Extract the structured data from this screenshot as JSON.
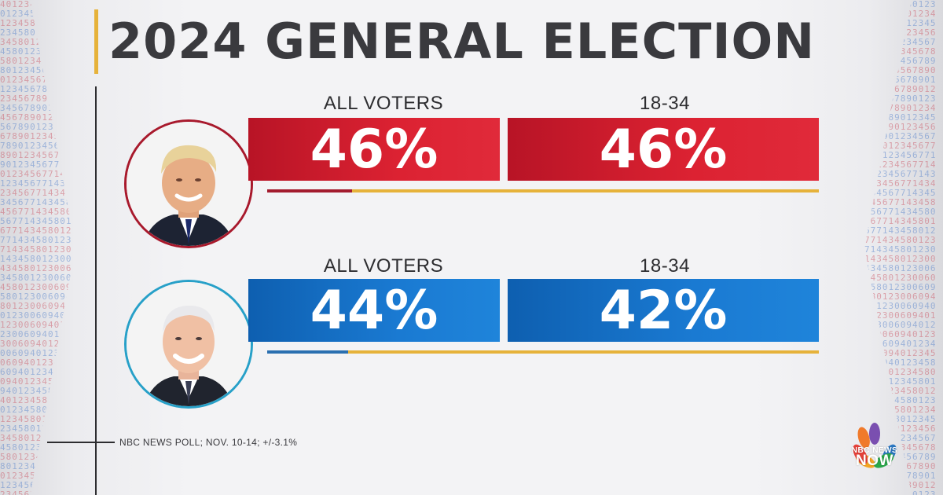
{
  "title": "2024 GENERAL ELECTION",
  "source_note": "NBC NEWS POLL; NOV. 10-14; +/-3.1%",
  "candidates": [
    {
      "party_color": "#d81f2f",
      "ring_color": "#a8192c",
      "columns": [
        {
          "label": "ALL VOTERS",
          "value": "46%",
          "percent": 46
        },
        {
          "label": "18-34",
          "value": "46%",
          "percent": 46
        }
      ]
    },
    {
      "party_color": "#1a7ad2",
      "ring_color": "#27a0c8",
      "columns": [
        {
          "label": "ALL VOTERS",
          "value": "44%",
          "percent": 44
        },
        {
          "label": "18-34",
          "value": "42%",
          "percent": 42
        }
      ]
    }
  ],
  "logo": {
    "icon": "nbc-peacock-icon",
    "line1": "NBC NEWS",
    "line2": "NOW"
  },
  "background_pattern": "401234580123456789012345677143458012300609"
}
